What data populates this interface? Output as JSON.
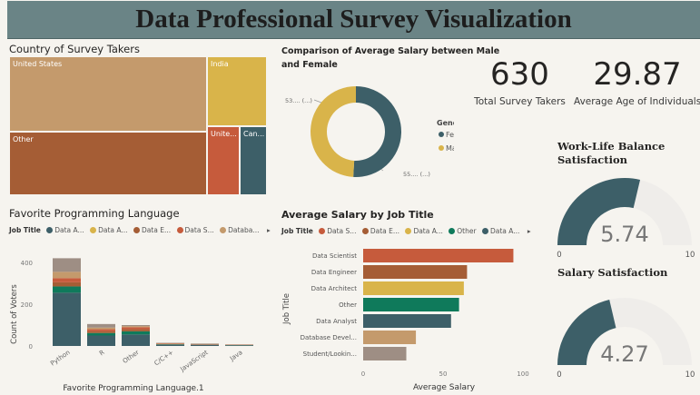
{
  "header": {
    "title": "Data Professional Survey Visualization"
  },
  "treemap": {
    "title": "Country of Survey Takers",
    "tiles": [
      {
        "label": "United States",
        "color": "#c49a6c"
      },
      {
        "label": "India",
        "color": "#d9b44a"
      },
      {
        "label": "Other",
        "color": "#a55d35"
      },
      {
        "label": "Unite...",
        "color": "#c65b3c"
      },
      {
        "label": "Can...",
        "color": "#3d5f68"
      }
    ]
  },
  "donut": {
    "title_line1": "Comparison of Average Salary between Male",
    "title_line2": "and Female",
    "label_left": "53.... (...)",
    "label_right": "55.... (...)",
    "legend_title": "Gender",
    "legend": [
      {
        "name": "Female",
        "color": "#3d5f68"
      },
      {
        "name": "Male",
        "color": "#d9b44a"
      }
    ]
  },
  "kpis": [
    {
      "value": "630",
      "label": "Total Survey Takers"
    },
    {
      "value": "29.87",
      "label": "Average Age of Individuals"
    }
  ],
  "gauges": [
    {
      "title_line1": "Work-Life Balance",
      "title_line2": "Satisfaction",
      "value_text": "5.74",
      "value": 5.74,
      "min": "0",
      "max": "10"
    },
    {
      "title_line1": "Salary Satisfaction",
      "title_line2": "",
      "value_text": "4.27",
      "value": 4.27,
      "min": "0",
      "max": "10"
    }
  ],
  "lang_chart": {
    "title": "Favorite Programming Language",
    "legend_label": "Job Title",
    "legend_items": [
      {
        "name": "Data A...",
        "color": "#3d5f68"
      },
      {
        "name": "Data A...",
        "color": "#d9b44a"
      },
      {
        "name": "Data E...",
        "color": "#a55d35"
      },
      {
        "name": "Data S...",
        "color": "#c65b3c"
      },
      {
        "name": "Databa...",
        "color": "#c49a6c"
      }
    ],
    "more_arrow": "▸",
    "ylabel": "Count of Voters",
    "xlabel": "Favorite Programming Language.1",
    "yticks": [
      "0",
      "200",
      "400"
    ]
  },
  "salary_chart": {
    "title": "Average Salary by Job Title",
    "legend_label": "Job Title",
    "legend_items": [
      {
        "name": "Data S...",
        "color": "#c65b3c"
      },
      {
        "name": "Data E...",
        "color": "#a55d35"
      },
      {
        "name": "Data A...",
        "color": "#d9b44a"
      },
      {
        "name": "Other",
        "color": "#0f7a5b"
      },
      {
        "name": "Data A...",
        "color": "#3d5f68"
      }
    ],
    "more_arrow": "▸",
    "ylabel": "Job Title",
    "xlabel": "Average Salary",
    "xticks": [
      "0",
      "50",
      "100"
    ]
  },
  "chart_data": [
    {
      "type": "bar",
      "title": "Favorite Programming Language",
      "xlabel": "Favorite Programming Language.1",
      "ylabel": "Count of Voters",
      "ylim": [
        0,
        450
      ],
      "categories": [
        "Python",
        "R",
        "Other",
        "C/C++",
        "JavaScript",
        "Java"
      ],
      "series": [
        {
          "name": "Data A...",
          "color": "#3d5f68",
          "values": [
            255,
            50,
            55,
            6,
            5,
            3
          ]
        },
        {
          "name": "Other",
          "color": "#0f7a5b",
          "values": [
            30,
            12,
            15,
            2,
            1,
            1
          ]
        },
        {
          "name": "Data E...",
          "color": "#a55d35",
          "values": [
            20,
            8,
            10,
            1,
            1,
            1
          ]
        },
        {
          "name": "Data S...",
          "color": "#c65b3c",
          "values": [
            20,
            10,
            10,
            2,
            2,
            1
          ]
        },
        {
          "name": "Databa...",
          "color": "#c49a6c",
          "values": [
            30,
            8,
            5,
            2,
            1,
            1
          ]
        },
        {
          "name": "Student/Lookin...",
          "color": "#9e8e84",
          "values": [
            65,
            17,
            5,
            2,
            2,
            1
          ]
        }
      ]
    },
    {
      "type": "bar",
      "orientation": "horizontal",
      "title": "Average Salary by Job Title",
      "xlabel": "Average Salary",
      "ylabel": "Job Title",
      "xlim": [
        0,
        100
      ],
      "categories": [
        "Data Scientist",
        "Data Engineer",
        "Data Architect",
        "Other",
        "Data Analyst",
        "Database Devel...",
        "Student/Lookin..."
      ],
      "values": [
        94,
        65,
        63,
        60,
        55,
        33,
        27
      ],
      "colors": [
        "#c65b3c",
        "#a55d35",
        "#d9b44a",
        "#0f7a5b",
        "#3d5f68",
        "#c49a6c",
        "#9e8e84"
      ]
    },
    {
      "type": "pie",
      "title": "Comparison of Average Salary between Male and Female",
      "categories": [
        "Female",
        "Male"
      ],
      "values": [
        55,
        53
      ],
      "colors": [
        "#3d5f68",
        "#d9b44a"
      ]
    }
  ]
}
